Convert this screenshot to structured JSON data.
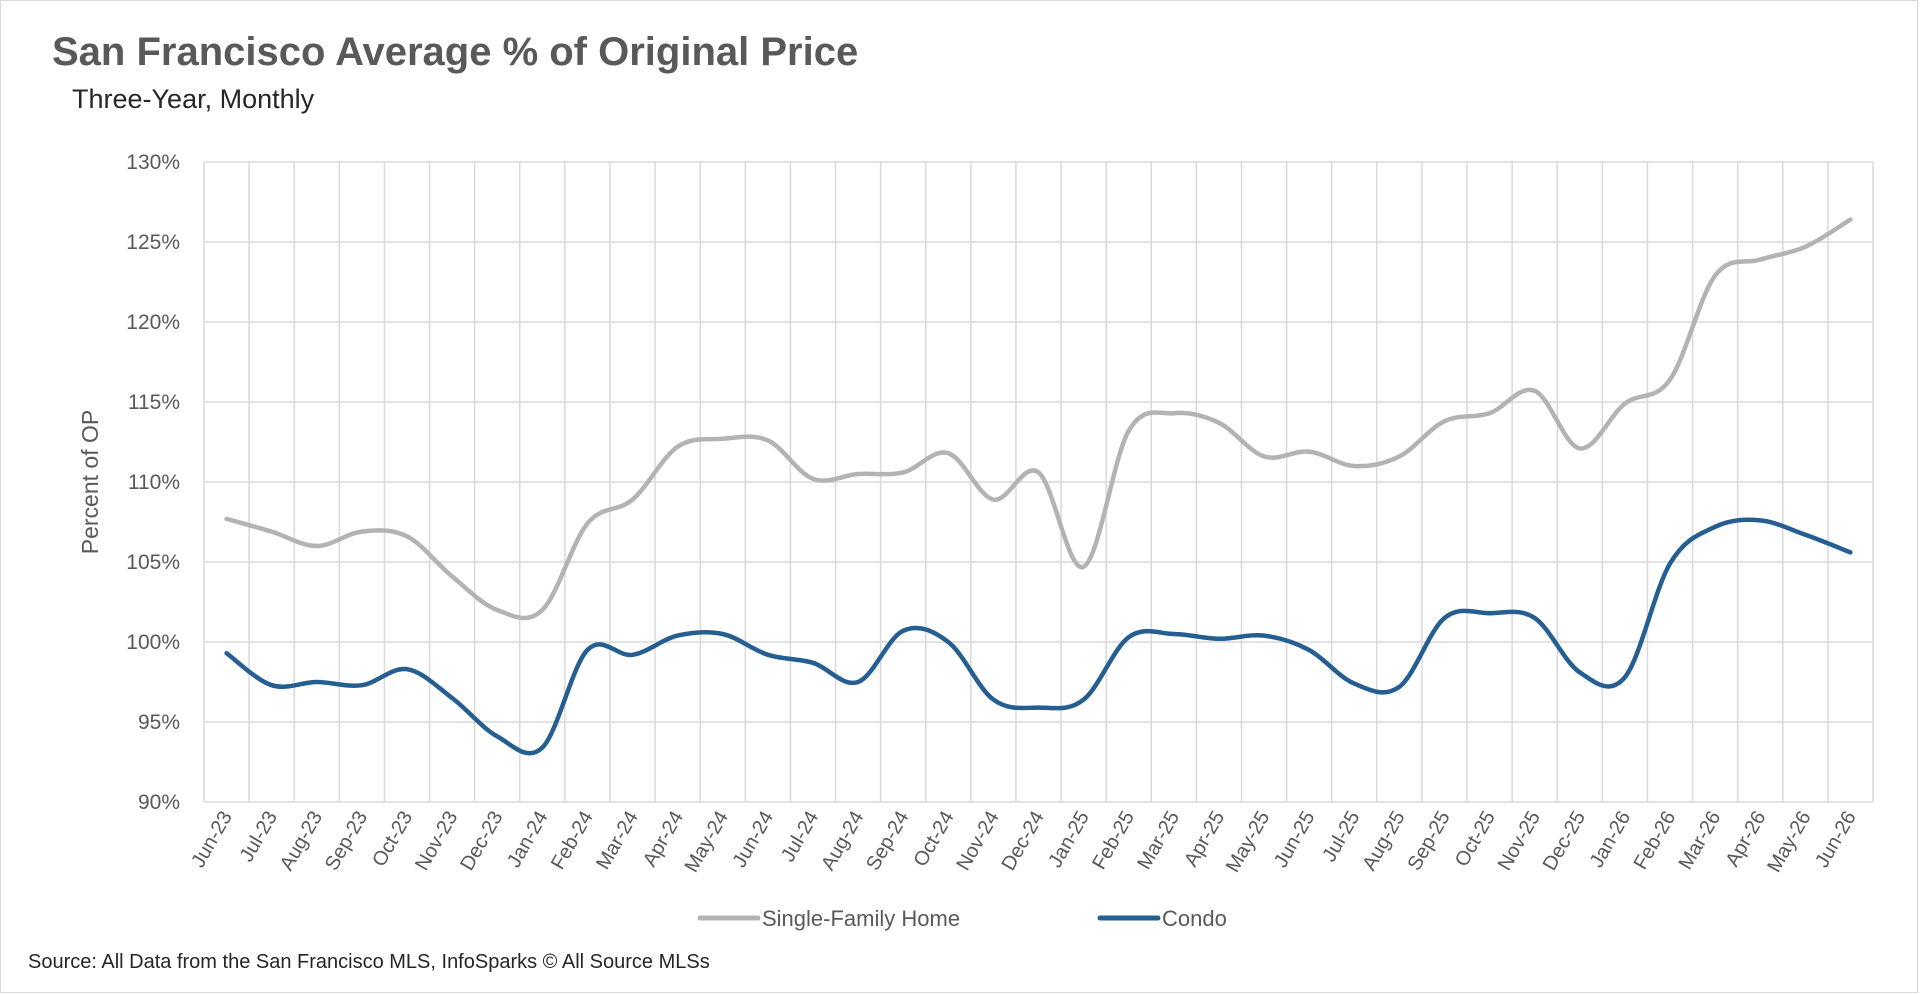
{
  "title": "San Francisco Average % of Original Price",
  "subtitle": "Three-Year, Monthly",
  "source": "Source: All Data from the San Francisco MLS, InfoSparks © All Source MLSs",
  "chart_data": {
    "type": "line",
    "title": "San Francisco Average % of Original Price",
    "subtitle": "Three-Year, Monthly",
    "ylabel": "Percent of OP",
    "xlabel": "",
    "ylim": [
      90,
      130
    ],
    "ytick_step": 5,
    "y_unit": "%",
    "grid": true,
    "legend_position": "bottom",
    "categories": [
      "Jun-23",
      "Jul-23",
      "Aug-23",
      "Sep-23",
      "Oct-23",
      "Nov-23",
      "Dec-23",
      "Jan-24",
      "Feb-24",
      "Mar-24",
      "Apr-24",
      "May-24",
      "Jun-24",
      "Jul-24",
      "Aug-24",
      "Sep-24",
      "Oct-24",
      "Nov-24",
      "Dec-24",
      "Jan-25",
      "Feb-25",
      "Mar-25",
      "Apr-25",
      "May-25",
      "Jun-25",
      "Jul-25",
      "Aug-25",
      "Sep-25",
      "Oct-25",
      "Nov-25",
      "Dec-25",
      "Jan-26",
      "Feb-26",
      "Mar-26",
      "Apr-26",
      "May-26",
      "Jun-26"
    ],
    "series": [
      {
        "name": "Single-Family Home",
        "color": "#b3b3b3",
        "values": [
          107.7,
          106.9,
          106.0,
          106.9,
          106.6,
          104.1,
          102.0,
          102.0,
          107.4,
          108.9,
          112.2,
          112.7,
          112.6,
          110.2,
          110.5,
          110.6,
          111.8,
          108.9,
          110.6,
          104.7,
          113.2,
          114.3,
          113.7,
          111.6,
          111.9,
          111.0,
          111.6,
          113.8,
          114.3,
          115.7,
          112.1,
          114.9,
          116.4,
          122.9,
          123.9,
          124.7,
          126.4
        ]
      },
      {
        "name": "Condo",
        "color": "#255e91",
        "values": [
          99.3,
          97.3,
          97.5,
          97.3,
          98.3,
          96.5,
          94.1,
          93.4,
          99.5,
          99.2,
          100.4,
          100.5,
          99.2,
          98.7,
          97.5,
          100.7,
          100.0,
          96.4,
          95.9,
          96.4,
          100.3,
          100.5,
          100.2,
          100.4,
          99.5,
          97.4,
          97.2,
          101.5,
          101.8,
          101.5,
          98.1,
          97.8,
          104.9,
          107.2,
          107.6,
          106.7,
          105.6
        ]
      }
    ]
  }
}
